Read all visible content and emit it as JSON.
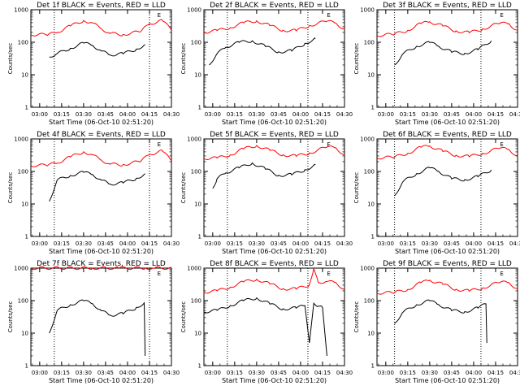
{
  "figure": {
    "type": "line",
    "y_scale": "log",
    "y_ticks": [
      "1",
      "10",
      "100",
      "1000"
    ],
    "y_label": "Counts/sec",
    "x_ticks": [
      "03:00",
      "03:15",
      "03:30",
      "03:45",
      "04:00",
      "04:15",
      "04:30"
    ],
    "x_label": "Start Time (06-Oct-10 02:51:20)",
    "marker_label": "E",
    "colors": {
      "events": "#000000",
      "lld": "#ff0000"
    }
  },
  "chart_data": [
    {
      "title": "Det 1f BLACK = Events, RED = LLD",
      "type": "line",
      "x_range": [
        2.9,
        4.5
      ],
      "y_log_range": [
        1,
        1000
      ],
      "vlines": [
        3.1667,
        4.25
      ],
      "marker_at": 4.36,
      "series": [
        {
          "name": "Events",
          "color": "#000000",
          "x": [
            3.11,
            3.2,
            3.35,
            3.5,
            3.6,
            3.7,
            3.8,
            3.95,
            4.1,
            4.2
          ],
          "values": [
            35,
            45,
            65,
            95,
            80,
            55,
            40,
            45,
            60,
            85
          ]
        },
        {
          "name": "LLD",
          "color": "#ff0000",
          "x": [
            2.9,
            3.1,
            3.2,
            3.35,
            3.5,
            3.6,
            3.7,
            3.8,
            3.95,
            4.15,
            4.25,
            4.4,
            4.5
          ],
          "values": [
            170,
            175,
            200,
            320,
            460,
            400,
            260,
            190,
            170,
            220,
            360,
            470,
            240
          ]
        }
      ]
    },
    {
      "title": "Det 2f BLACK = Events, RED = LLD",
      "type": "line",
      "x_range": [
        2.9,
        4.5
      ],
      "y_log_range": [
        1,
        1000
      ],
      "vlines": [
        3.1667,
        4.0833
      ],
      "marker_at": 4.32,
      "series": [
        {
          "name": "Events",
          "color": "#000000",
          "x": [
            2.96,
            3.05,
            3.15,
            3.3,
            3.45,
            3.6,
            3.75,
            3.9,
            4.05,
            4.17
          ],
          "values": [
            20,
            45,
            70,
            100,
            110,
            75,
            50,
            55,
            90,
            130
          ]
        },
        {
          "name": "LLD",
          "color": "#ff0000",
          "x": [
            2.9,
            3.05,
            3.2,
            3.35,
            3.5,
            3.65,
            3.8,
            3.95,
            4.1,
            4.3,
            4.4,
            4.5
          ],
          "values": [
            200,
            230,
            280,
            400,
            450,
            330,
            230,
            230,
            320,
            460,
            380,
            250
          ]
        }
      ]
    },
    {
      "title": "Det 3f BLACK = Events, RED = LLD",
      "type": "line",
      "x_range": [
        2.9,
        4.5
      ],
      "y_log_range": [
        1,
        1000
      ],
      "vlines": [
        3.1,
        4.0833
      ],
      "marker_at": 4.32,
      "series": [
        {
          "name": "Events",
          "color": "#000000",
          "x": [
            3.1,
            3.2,
            3.35,
            3.5,
            3.6,
            3.75,
            3.9,
            4.05,
            4.2
          ],
          "values": [
            20,
            45,
            75,
            100,
            75,
            50,
            45,
            60,
            110
          ]
        },
        {
          "name": "LLD",
          "color": "#ff0000",
          "x": [
            2.9,
            3.1,
            3.25,
            3.4,
            3.5,
            3.65,
            3.8,
            3.95,
            4.1,
            4.3,
            4.4,
            4.5
          ],
          "values": [
            160,
            180,
            230,
            380,
            420,
            320,
            220,
            200,
            250,
            400,
            360,
            230
          ]
        }
      ]
    },
    {
      "title": "Det 4f BLACK = Events, RED = LLD",
      "type": "line",
      "x_range": [
        2.9,
        4.5
      ],
      "y_log_range": [
        1,
        1000
      ],
      "vlines": [
        3.1667,
        4.25
      ],
      "marker_at": 4.36,
      "series": [
        {
          "name": "Events",
          "color": "#000000",
          "x": [
            3.11,
            3.2,
            3.35,
            3.5,
            3.6,
            3.7,
            3.8,
            3.95,
            4.1,
            4.2
          ],
          "values": [
            12,
            55,
            75,
            95,
            80,
            55,
            40,
            45,
            60,
            85
          ]
        },
        {
          "name": "LLD",
          "color": "#ff0000",
          "x": [
            2.9,
            3.1,
            3.2,
            3.35,
            3.5,
            3.6,
            3.7,
            3.8,
            3.95,
            4.15,
            4.25,
            4.4,
            4.5
          ],
          "values": [
            150,
            160,
            180,
            280,
            400,
            330,
            220,
            170,
            160,
            210,
            330,
            430,
            210
          ]
        }
      ]
    },
    {
      "title": "Det 5f BLACK = Events, RED = LLD",
      "type": "line",
      "x_range": [
        2.9,
        4.5
      ],
      "y_log_range": [
        1,
        1000
      ],
      "vlines": [
        3.1667,
        4.0833
      ],
      "marker_at": 4.32,
      "series": [
        {
          "name": "Events",
          "color": "#000000",
          "x": [
            3.0,
            3.05,
            3.15,
            3.3,
            3.45,
            3.6,
            3.75,
            3.9,
            4.05,
            4.17
          ],
          "values": [
            30,
            60,
            90,
            130,
            180,
            120,
            75,
            80,
            110,
            160
          ]
        },
        {
          "name": "LLD",
          "color": "#ff0000",
          "x": [
            2.9,
            3.05,
            3.2,
            3.35,
            3.5,
            3.65,
            3.8,
            3.95,
            4.1,
            4.3,
            4.4,
            4.5
          ],
          "values": [
            250,
            260,
            320,
            500,
            620,
            450,
            320,
            300,
            360,
            580,
            520,
            320
          ]
        }
      ]
    },
    {
      "title": "Det 6f BLACK = Events, RED = LLD",
      "type": "line",
      "x_range": [
        2.9,
        4.5
      ],
      "y_log_range": [
        1,
        1000
      ],
      "vlines": [
        3.1,
        4.0833
      ],
      "marker_at": 4.32,
      "series": [
        {
          "name": "Events",
          "color": "#000000",
          "x": [
            3.1,
            3.2,
            3.35,
            3.5,
            3.6,
            3.75,
            3.9,
            4.05,
            4.2
          ],
          "values": [
            18,
            50,
            85,
            130,
            100,
            60,
            55,
            70,
            110
          ]
        },
        {
          "name": "LLD",
          "color": "#ff0000",
          "x": [
            2.9,
            3.1,
            3.25,
            3.4,
            3.5,
            3.65,
            3.8,
            3.95,
            4.1,
            4.3,
            4.4,
            4.5
          ],
          "values": [
            260,
            280,
            360,
            560,
            600,
            420,
            310,
            290,
            350,
            540,
            460,
            300
          ]
        }
      ]
    },
    {
      "title": "Det 7f BLACK = Events, RED = LLD",
      "type": "line",
      "x_range": [
        2.9,
        4.5
      ],
      "y_log_range": [
        1,
        1000
      ],
      "vlines": [
        3.1667,
        4.25
      ],
      "marker_at": 4.36,
      "series": [
        {
          "name": "Events",
          "color": "#000000",
          "x": [
            3.11,
            3.2,
            3.35,
            3.5,
            3.6,
            3.7,
            3.8,
            3.95,
            4.1,
            4.19,
            4.2
          ],
          "values": [
            10,
            50,
            75,
            100,
            80,
            50,
            35,
            40,
            60,
            85,
            2
          ]
        },
        {
          "name": "LLD",
          "color": "#ff0000",
          "x": [
            2.9,
            3.3,
            3.6,
            3.9,
            4.2,
            4.3,
            4.5
          ],
          "values": [
            1000,
            1000,
            1000,
            1000,
            1000,
            1000,
            1000
          ]
        }
      ]
    },
    {
      "title": "Det 8f BLACK = Events, RED = LLD",
      "type": "line",
      "x_range": [
        2.9,
        4.5
      ],
      "y_log_range": [
        1,
        1000
      ],
      "vlines": [
        3.1667,
        4.0833
      ],
      "marker_at": 4.32,
      "series": [
        {
          "name": "Events",
          "color": "#000000",
          "x": [
            2.9,
            3.05,
            3.2,
            3.35,
            3.5,
            3.65,
            3.8,
            3.95,
            4.05,
            4.1,
            4.15,
            4.2,
            4.25,
            4.3
          ],
          "values": [
            45,
            50,
            70,
            100,
            120,
            80,
            55,
            60,
            70,
            5,
            80,
            70,
            60,
            2
          ]
        },
        {
          "name": "LLD",
          "color": "#ff0000",
          "x": [
            2.9,
            3.05,
            3.2,
            3.35,
            3.5,
            3.65,
            3.8,
            3.95,
            4.1,
            4.15,
            4.2,
            4.3,
            4.4,
            4.5
          ],
          "values": [
            180,
            200,
            260,
            380,
            450,
            330,
            230,
            230,
            300,
            1000,
            350,
            400,
            350,
            220
          ]
        }
      ]
    },
    {
      "title": "Det 9f BLACK = Events, RED = LLD",
      "type": "line",
      "x_range": [
        2.9,
        4.5
      ],
      "y_log_range": [
        1,
        1000
      ],
      "vlines": [
        3.1,
        4.0833
      ],
      "marker_at": 4.32,
      "series": [
        {
          "name": "Events",
          "color": "#000000",
          "x": [
            3.1,
            3.2,
            3.35,
            3.5,
            3.6,
            3.75,
            3.9,
            4.05,
            4.14,
            4.15
          ],
          "values": [
            20,
            45,
            75,
            100,
            75,
            50,
            45,
            60,
            80,
            5
          ]
        },
        {
          "name": "LLD",
          "color": "#ff0000",
          "x": [
            2.9,
            3.1,
            3.25,
            3.4,
            3.5,
            3.65,
            3.8,
            3.95,
            4.1,
            4.3,
            4.4,
            4.5
          ],
          "values": [
            170,
            180,
            220,
            360,
            420,
            320,
            220,
            200,
            240,
            380,
            350,
            230
          ]
        }
      ]
    }
  ]
}
